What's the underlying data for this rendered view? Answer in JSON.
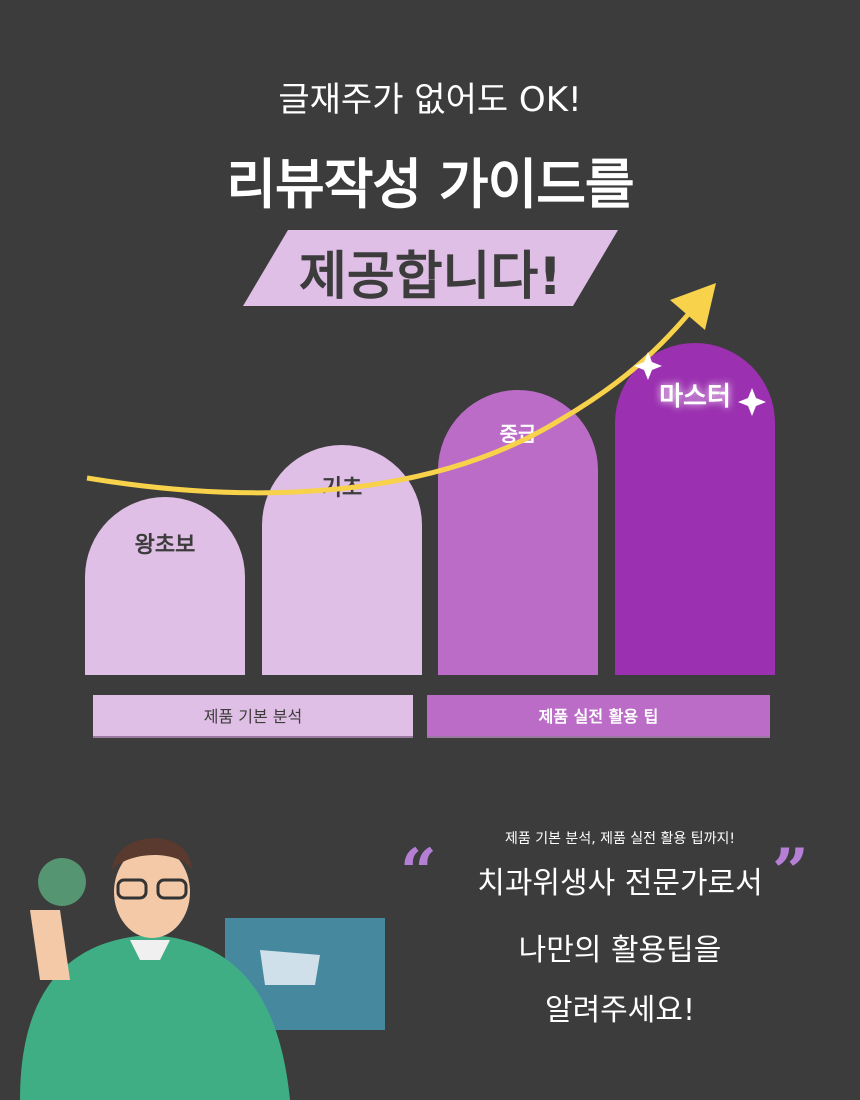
{
  "header": {
    "subtitle": "글재주가 없어도 OK!",
    "title": "리뷰작성 가이드를",
    "banner": "제공합니다!"
  },
  "levels": [
    {
      "label": "왕초보",
      "color": "#e0bfe6",
      "text_color": "#3c3c3c"
    },
    {
      "label": "기초",
      "color": "#e0bfe6",
      "text_color": "#3c3c3c"
    },
    {
      "label": "중급",
      "color": "#bb6cc6",
      "text_color": "#ffffff"
    },
    {
      "label": "마스터",
      "color": "#9b30b0",
      "text_color": "#ffffff"
    }
  ],
  "categories": [
    {
      "label": "제품 기본 분석",
      "color": "#e0bfe6"
    },
    {
      "label": "제품 실전 활용 팁",
      "color": "#bb6cc6"
    }
  ],
  "quote": {
    "small": "제품 기본 분석, 제품 실전 활용 팁까지!",
    "open_mark": "“",
    "close_mark": "”",
    "lines": [
      "치과위생사 전문가로서",
      "나만의 활용팁을",
      "알려주세요!"
    ]
  },
  "colors": {
    "background": "#3c3c3c",
    "arrow": "#f7d24a",
    "accent": "#b57fd6"
  }
}
